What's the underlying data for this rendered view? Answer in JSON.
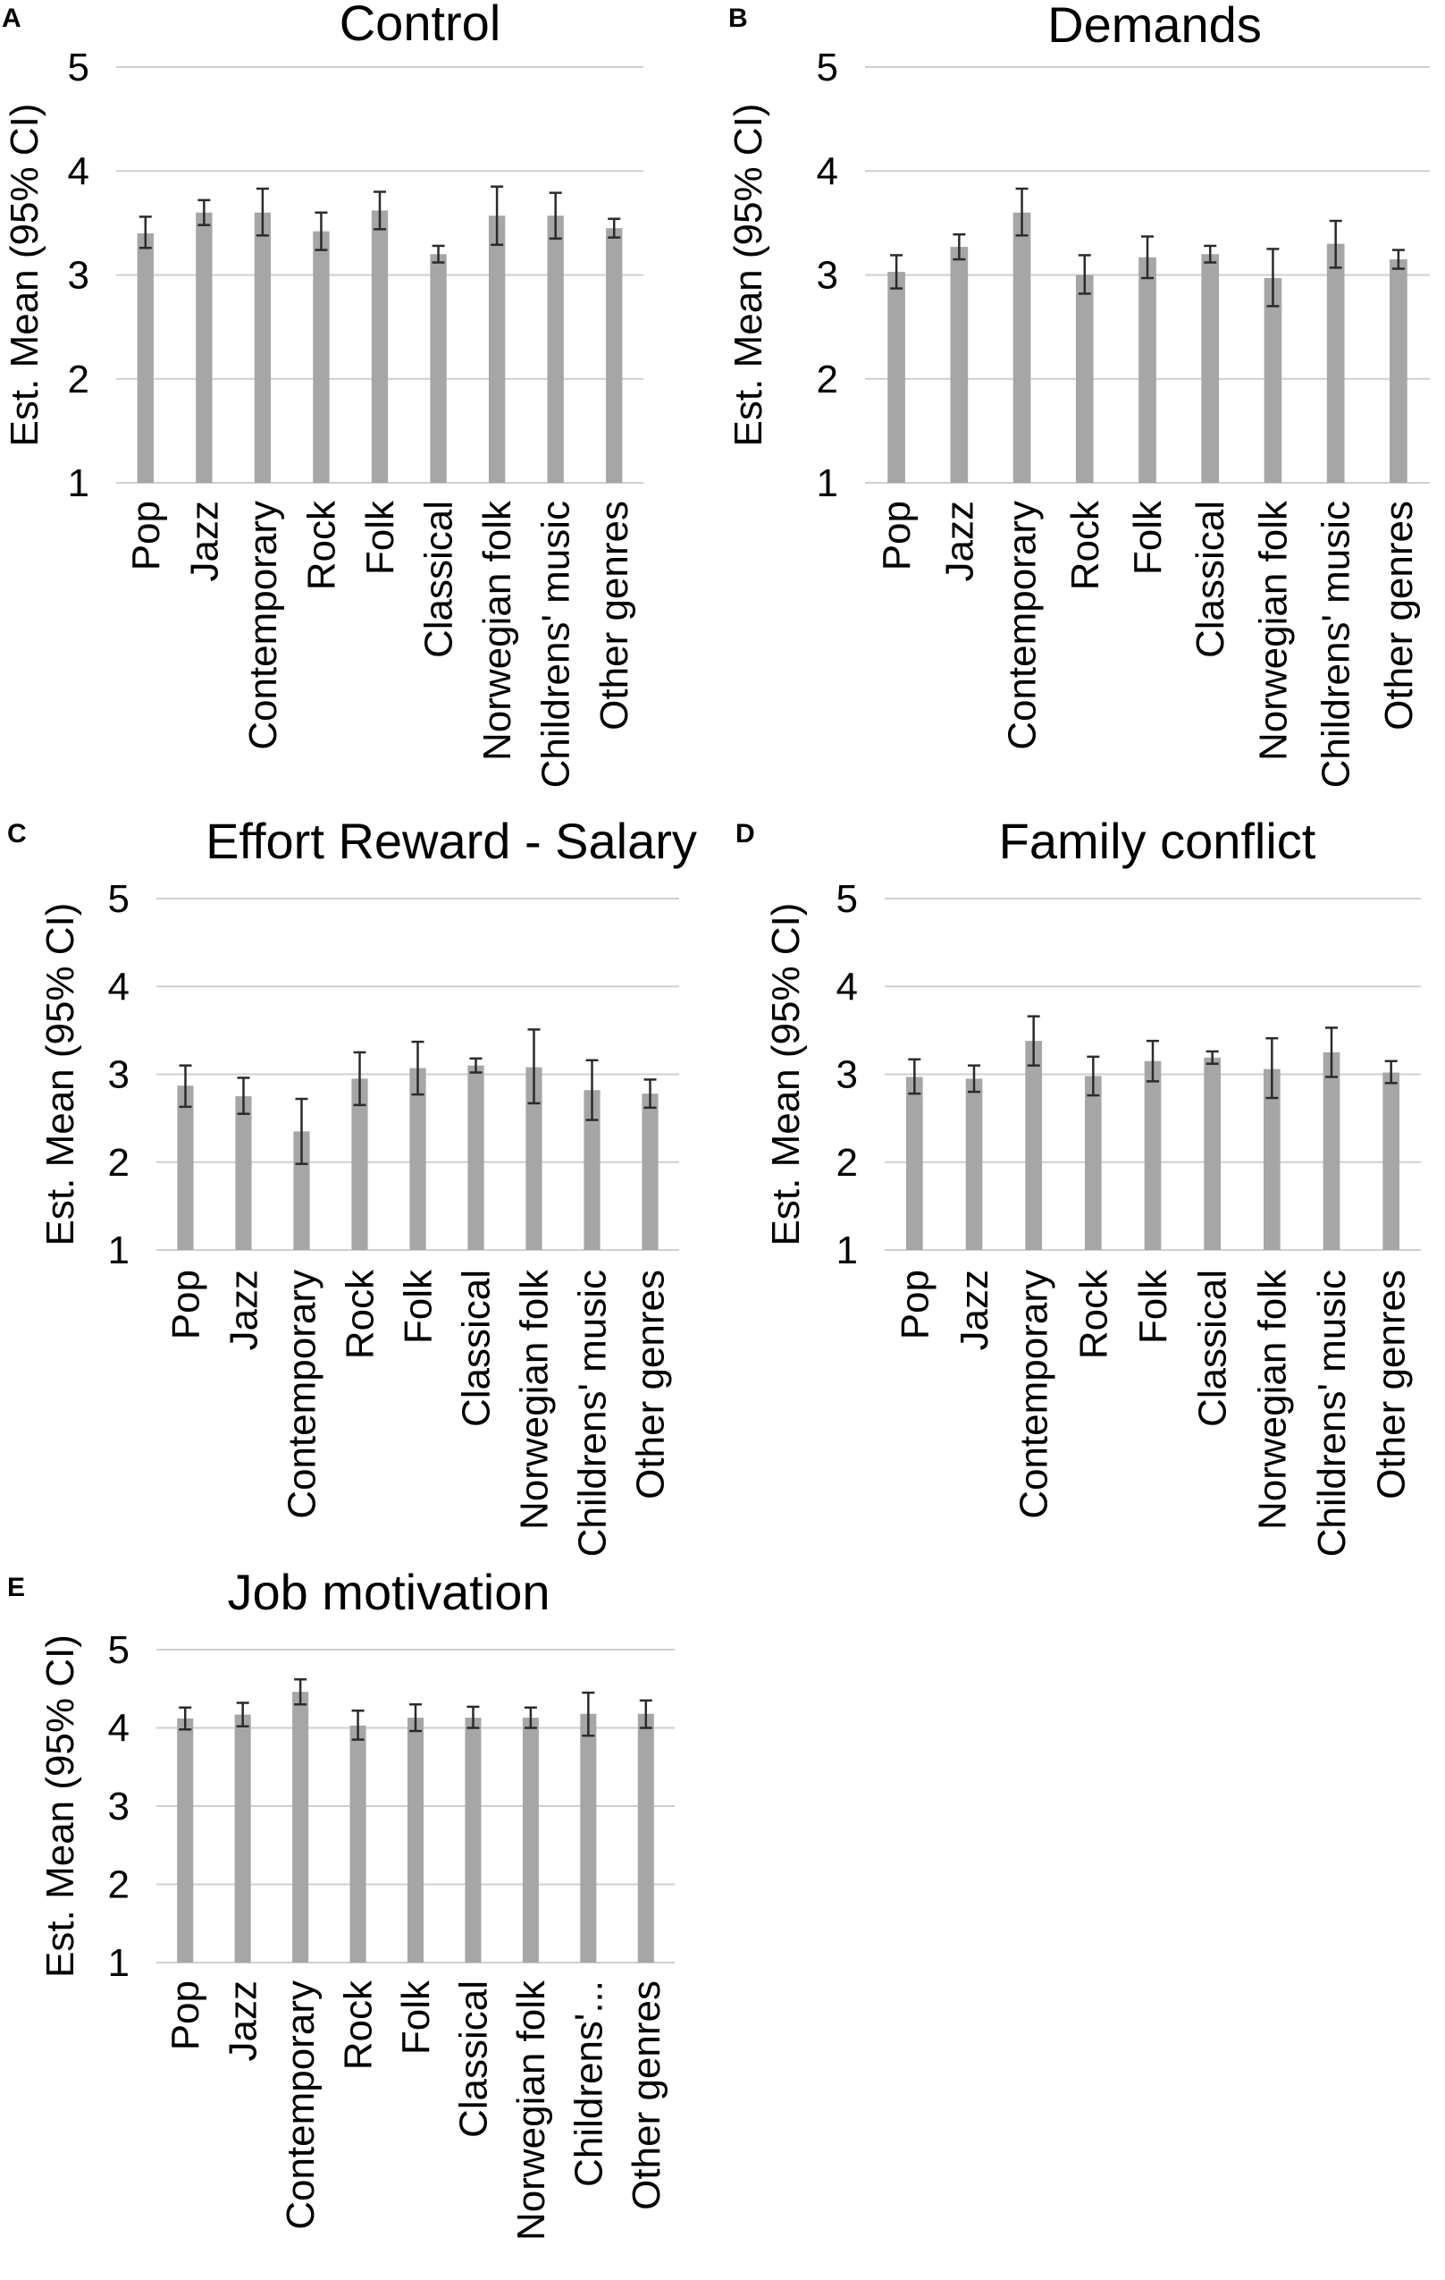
{
  "chart_data": [
    {
      "panel": "A",
      "type": "bar",
      "title": "Control",
      "ylabel": "Est. Mean (95% CI)",
      "xlabel": "",
      "ylim": [
        1,
        5
      ],
      "yticks": [
        1,
        2,
        3,
        4,
        5
      ],
      "grid": true,
      "categories": [
        "Pop",
        "Jazz",
        "Contemporary",
        "Rock",
        "Folk",
        "Classical",
        "Norwegian folk",
        "Childrens' music",
        "Other genres"
      ],
      "values": [
        3.4,
        3.6,
        3.6,
        3.42,
        3.62,
        3.2,
        3.57,
        3.57,
        3.45
      ],
      "ci_low": [
        3.26,
        3.48,
        3.38,
        3.24,
        3.44,
        3.12,
        3.29,
        3.35,
        3.36
      ],
      "ci_high": [
        3.56,
        3.72,
        3.83,
        3.6,
        3.8,
        3.28,
        3.85,
        3.79,
        3.54
      ]
    },
    {
      "panel": "B",
      "type": "bar",
      "title": "Demands",
      "ylabel": "Est. Mean (95% CI)",
      "xlabel": "",
      "ylim": [
        1,
        5
      ],
      "yticks": [
        1,
        2,
        3,
        4,
        5
      ],
      "grid": true,
      "categories": [
        "Pop",
        "Jazz",
        "Contemporary",
        "Rock",
        "Folk",
        "Classical",
        "Norwegian folk",
        "Childrens' music",
        "Other genres"
      ],
      "values": [
        3.03,
        3.27,
        3.6,
        3.0,
        3.17,
        3.2,
        2.97,
        3.3,
        3.15
      ],
      "ci_low": [
        2.87,
        3.15,
        3.38,
        2.82,
        2.97,
        3.12,
        2.7,
        3.07,
        3.06
      ],
      "ci_high": [
        3.19,
        3.39,
        3.83,
        3.19,
        3.37,
        3.28,
        3.25,
        3.52,
        3.24
      ]
    },
    {
      "panel": "C",
      "type": "bar",
      "title": "Effort Reward - Salary",
      "ylabel": "Est. Mean (95% CI)",
      "xlabel": "",
      "ylim": [
        1,
        5
      ],
      "yticks": [
        1,
        2,
        3,
        4,
        5
      ],
      "grid": true,
      "categories": [
        "Pop",
        "Jazz",
        "Contemporary",
        "Rock",
        "Folk",
        "Classical",
        "Norwegian folk",
        "Childrens' music",
        "Other genres"
      ],
      "values": [
        2.87,
        2.75,
        2.35,
        2.95,
        3.07,
        3.1,
        3.08,
        2.82,
        2.78
      ],
      "ci_low": [
        2.63,
        2.55,
        1.98,
        2.65,
        2.77,
        3.02,
        2.67,
        2.48,
        2.62
      ],
      "ci_high": [
        3.1,
        2.96,
        2.72,
        3.25,
        3.37,
        3.18,
        3.51,
        3.16,
        2.94
      ]
    },
    {
      "panel": "D",
      "type": "bar",
      "title": "Family conflict",
      "ylabel": "Est. Mean (95% CI)",
      "xlabel": "",
      "ylim": [
        1,
        5
      ],
      "yticks": [
        1,
        2,
        3,
        4,
        5
      ],
      "grid": true,
      "categories": [
        "Pop",
        "Jazz",
        "Contemporary",
        "Rock",
        "Folk",
        "Classical",
        "Norwegian folk",
        "Childrens' music",
        "Other genres"
      ],
      "values": [
        2.97,
        2.95,
        3.38,
        2.98,
        3.15,
        3.19,
        3.06,
        3.25,
        3.02
      ],
      "ci_low": [
        2.78,
        2.8,
        3.1,
        2.76,
        2.92,
        3.12,
        2.73,
        2.97,
        2.9
      ],
      "ci_high": [
        3.17,
        3.1,
        3.66,
        3.2,
        3.38,
        3.26,
        3.41,
        3.53,
        3.15
      ]
    },
    {
      "panel": "E",
      "type": "bar",
      "title": "Job motivation",
      "ylabel": "Est. Mean (95% CI)",
      "xlabel": "",
      "ylim": [
        1,
        5
      ],
      "yticks": [
        1,
        2,
        3,
        4,
        5
      ],
      "grid": true,
      "categories": [
        "Pop",
        "Jazz",
        "Contemporary",
        "Rock",
        "Folk",
        "Classical",
        "Norwegian folk",
        "Childrens'...",
        "Other genres"
      ],
      "values": [
        4.12,
        4.17,
        4.46,
        4.03,
        4.13,
        4.13,
        4.13,
        4.18,
        4.18
      ],
      "ci_low": [
        3.98,
        4.02,
        4.3,
        3.85,
        3.96,
        4.0,
        4.0,
        3.9,
        4.0
      ],
      "ci_high": [
        4.26,
        4.32,
        4.62,
        4.22,
        4.3,
        4.27,
        4.26,
        4.45,
        4.35
      ]
    }
  ]
}
